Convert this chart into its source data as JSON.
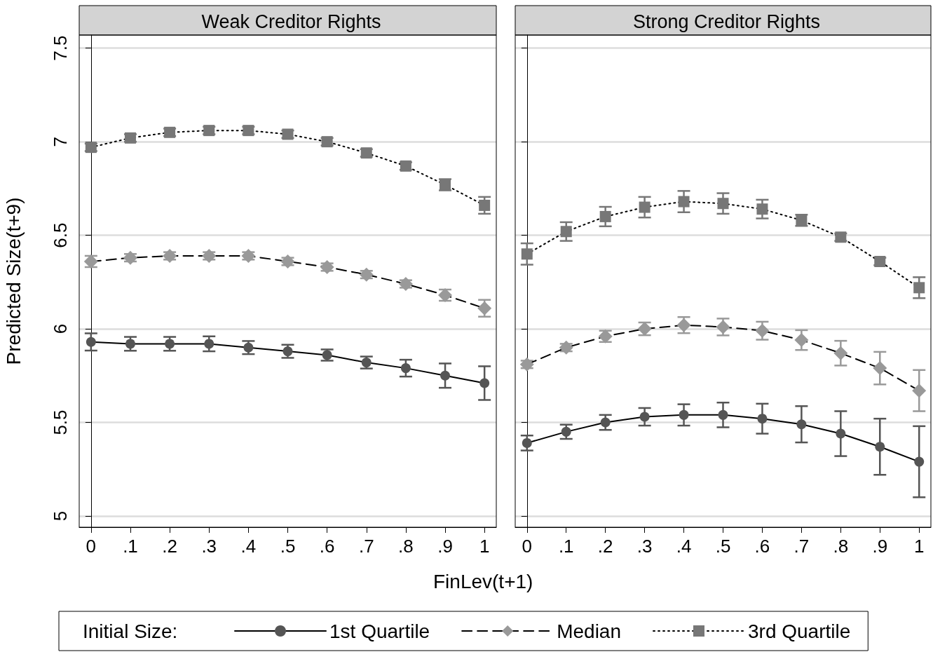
{
  "chart_data": [
    {
      "type": "line",
      "title": "Weak Creditor Rights",
      "xlabel": "FinLev(t+1)",
      "ylabel": "Predicted Size(t+9)",
      "legend_title": "Initial Size:",
      "legend": "bottom",
      "grid": "y",
      "x": [
        0,
        0.1,
        0.2,
        0.3,
        0.4,
        0.5,
        0.6,
        0.7,
        0.8,
        0.9,
        1
      ],
      "xlim": [
        -0.03,
        1.03
      ],
      "xticks": [
        {
          "value": 0,
          "label": "0"
        },
        {
          "value": 0.1,
          "label": ".1"
        },
        {
          "value": 0.2,
          "label": ".2"
        },
        {
          "value": 0.3,
          "label": ".3"
        },
        {
          "value": 0.4,
          "label": ".4"
        },
        {
          "value": 0.5,
          "label": ".5"
        },
        {
          "value": 0.6,
          "label": ".6"
        },
        {
          "value": 0.7,
          "label": ".7"
        },
        {
          "value": 0.8,
          "label": ".8"
        },
        {
          "value": 0.9,
          "label": ".9"
        },
        {
          "value": 1,
          "label": "1"
        }
      ],
      "ylim": [
        4.94,
        7.57
      ],
      "yticks": [
        5,
        5.5,
        6,
        6.5,
        7,
        7.5
      ],
      "series": [
        {
          "name": "1st Quartile",
          "color": "#555555",
          "marker": "circle",
          "line_style": "solid",
          "values": [
            5.93,
            5.92,
            5.92,
            5.92,
            5.9,
            5.88,
            5.86,
            5.82,
            5.79,
            5.75,
            5.71
          ],
          "errors": [
            0.046,
            0.037,
            0.037,
            0.04,
            0.035,
            0.035,
            0.03,
            0.032,
            0.045,
            0.065,
            0.09
          ]
        },
        {
          "name": "Median",
          "color": "#999999",
          "marker": "diamond",
          "line_style": "dashed",
          "values": [
            6.36,
            6.38,
            6.39,
            6.39,
            6.39,
            6.36,
            6.33,
            6.29,
            6.24,
            6.18,
            6.11
          ],
          "errors": [
            0.03,
            0.02,
            0.02,
            0.02,
            0.02,
            0.02,
            0.02,
            0.02,
            0.02,
            0.03,
            0.045
          ]
        },
        {
          "name": "3rd Quartile",
          "color": "#777777",
          "marker": "square",
          "line_style": "dotted",
          "values": [
            6.97,
            7.02,
            7.05,
            7.06,
            7.06,
            7.04,
            7.0,
            6.94,
            6.87,
            6.77,
            6.66
          ],
          "errors": [
            0.02,
            0.02,
            0.02,
            0.02,
            0.02,
            0.02,
            0.02,
            0.02,
            0.02,
            0.03,
            0.045
          ]
        }
      ]
    },
    {
      "type": "line",
      "title": "Strong Creditor Rights",
      "grid": "y",
      "tick_labels": "x",
      "x": [
        0,
        0.1,
        0.2,
        0.3,
        0.4,
        0.5,
        0.6,
        0.7,
        0.8,
        0.9,
        1
      ],
      "xlim": [
        -0.03,
        1.03
      ],
      "xticks": [
        {
          "value": 0,
          "label": "0"
        },
        {
          "value": 0.1,
          "label": ".1"
        },
        {
          "value": 0.2,
          "label": ".2"
        },
        {
          "value": 0.3,
          "label": ".3"
        },
        {
          "value": 0.4,
          "label": ".4"
        },
        {
          "value": 0.5,
          "label": ".5"
        },
        {
          "value": 0.6,
          "label": ".6"
        },
        {
          "value": 0.7,
          "label": ".7"
        },
        {
          "value": 0.8,
          "label": ".8"
        },
        {
          "value": 0.9,
          "label": ".9"
        },
        {
          "value": 1,
          "label": "1"
        }
      ],
      "ylim": [
        4.94,
        7.57
      ],
      "yticks": [
        5,
        5.5,
        6,
        6.5,
        7,
        7.5
      ],
      "series": [
        {
          "color": "#555555",
          "marker": "circle",
          "line_style": "solid",
          "values": [
            5.39,
            5.45,
            5.5,
            5.53,
            5.54,
            5.54,
            5.52,
            5.49,
            5.44,
            5.37,
            5.29
          ],
          "errors": [
            0.04,
            0.038,
            0.04,
            0.047,
            0.057,
            0.066,
            0.08,
            0.097,
            0.12,
            0.15,
            0.19
          ]
        },
        {
          "color": "#999999",
          "marker": "diamond",
          "line_style": "dashed",
          "values": [
            5.81,
            5.9,
            5.96,
            6.0,
            6.02,
            6.01,
            5.99,
            5.94,
            5.87,
            5.79,
            5.67
          ],
          "errors": [
            0.02,
            0.02,
            0.03,
            0.034,
            0.043,
            0.045,
            0.048,
            0.053,
            0.066,
            0.087,
            0.11
          ]
        },
        {
          "color": "#777777",
          "marker": "square",
          "line_style": "dotted",
          "values": [
            6.4,
            6.52,
            6.6,
            6.65,
            6.68,
            6.67,
            6.64,
            6.58,
            6.49,
            6.36,
            6.22
          ],
          "errors": [
            0.057,
            0.05,
            0.052,
            0.055,
            0.057,
            0.055,
            0.05,
            0.03,
            0.02,
            0.02,
            0.056
          ]
        }
      ]
    }
  ]
}
